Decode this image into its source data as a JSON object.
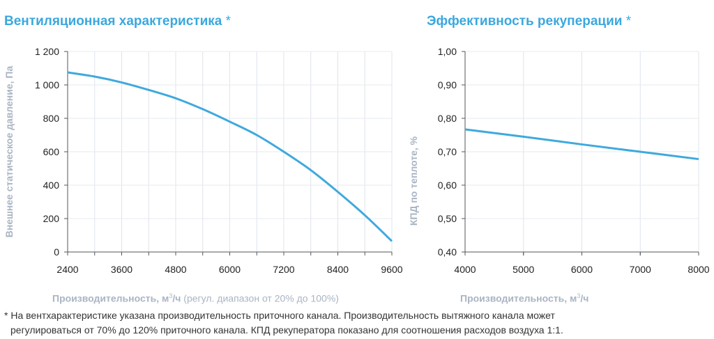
{
  "chart_data": [
    {
      "type": "line",
      "title": "Вентиляционная характеристика",
      "title_mark": "*",
      "xlabel_main": "Производительность, м",
      "xlabel_sup": "3",
      "xlabel_unit": "/ч",
      "xlabel_note": " (регул. диапазон от 20% до 100%)",
      "ylabel": "Внешнее статическое давление, Па",
      "xlim": [
        2400,
        9600
      ],
      "ylim": [
        0,
        1200
      ],
      "xticks": [
        "2400",
        "3600",
        "4800",
        "6000",
        "7200",
        "8400",
        "9600"
      ],
      "yticks": [
        "0",
        "200",
        "400",
        "600",
        "800",
        "1 000",
        "1 200"
      ],
      "grid": true,
      "color": "#3fa9dd",
      "x": [
        2400,
        3000,
        3600,
        4200,
        4800,
        5400,
        6000,
        6600,
        7200,
        7800,
        8400,
        9000,
        9600
      ],
      "y": [
        1075,
        1050,
        1015,
        970,
        920,
        855,
        780,
        700,
        600,
        490,
        360,
        220,
        65
      ]
    },
    {
      "type": "line",
      "title": "Эффективность рекуперации",
      "title_mark": "*",
      "xlabel_main": "Производительность, м",
      "xlabel_sup": "3",
      "xlabel_unit": "/ч",
      "ylabel": "КПД по теплоте, %",
      "xlim": [
        4000,
        8000
      ],
      "ylim": [
        0.4,
        1.0
      ],
      "xticks": [
        "4000",
        "5000",
        "6000",
        "7000",
        "8000"
      ],
      "yticks": [
        "0,40",
        "0,50",
        "0,60",
        "0,70",
        "0,80",
        "0,90",
        "1,00"
      ],
      "grid": true,
      "color": "#3fa9dd",
      "x": [
        4000,
        5000,
        6000,
        7000,
        8000
      ],
      "y": [
        0.767,
        0.745,
        0.722,
        0.7,
        0.678
      ]
    }
  ],
  "footnote": {
    "line1": "* На вентхарактеристике указана производительность приточного канала. Производительность вытяжного канала может",
    "line2": "регулироваться от 70% до 120% приточного канала. КПД рекуператора показано для соотношения расходов воздуха 1:1."
  }
}
